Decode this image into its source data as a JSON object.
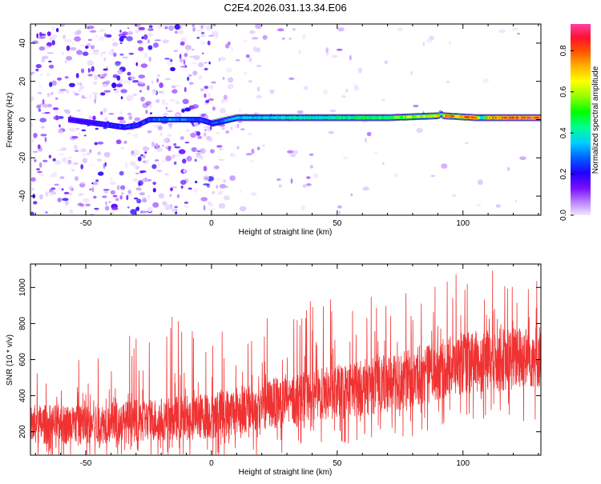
{
  "title": "C2E4.2026.031.13.34.E06",
  "chart_data": [
    {
      "type": "heatmap",
      "title": "C2E4.2026.031.13.34.E06",
      "xlabel": "Height of straight line (km)",
      "ylabel": "Frequency (Hz)",
      "xlim": [
        -72,
        131
      ],
      "ylim": [
        -50,
        50
      ],
      "xticks": [
        -50,
        0,
        50,
        100
      ],
      "xtick_labels": [
        "-50",
        "0",
        "50",
        "100"
      ],
      "yticks": [
        -40,
        -20,
        0,
        20,
        40
      ],
      "ytick_labels": [
        "-40",
        "-20",
        "0",
        "20",
        "40"
      ],
      "grid": false,
      "colorbar": {
        "label": "Normalized spectral amplitude",
        "range": [
          0,
          0.93
        ],
        "ticks": [
          0.0,
          0.2,
          0.4,
          0.6,
          0.8
        ],
        "tick_labels": [
          "0.0",
          "0.2",
          "0.4",
          "0.6",
          "0.8"
        ],
        "colors": [
          "#f0dfff",
          "#9b3bff",
          "#5a00ff",
          "#0000ff",
          "#0080ff",
          "#00e6ff",
          "#00ff80",
          "#00ff00",
          "#7fff00",
          "#ffff00",
          "#ffb000",
          "#ff5000",
          "#ff1010",
          "#ff40a0"
        ]
      },
      "signal_band": {
        "description_x": [
          -57,
          -35,
          -30,
          -25,
          -20,
          -15,
          -10,
          -5,
          0,
          10,
          30,
          50,
          70,
          90,
          91,
          92,
          105,
          107,
          110,
          131
        ],
        "center_frequency": [
          0,
          -4,
          -3,
          0,
          0,
          0,
          0,
          0,
          -2,
          1,
          1,
          1,
          1,
          2,
          3,
          2,
          1,
          1,
          1,
          1
        ],
        "amplitude": [
          0.18,
          0.25,
          0.22,
          0.25,
          0.3,
          0.3,
          0.3,
          0.25,
          0.25,
          0.35,
          0.4,
          0.45,
          0.5,
          0.7,
          0.3,
          0.75,
          0.8,
          0.35,
          0.8,
          0.85
        ]
      }
    },
    {
      "type": "line",
      "xlabel": "Height of straight line (km)",
      "ylabel": "SNR (10 * v/v)",
      "xlim": [
        -72,
        131
      ],
      "ylim": [
        70,
        1130
      ],
      "xticks": [
        -50,
        0,
        50,
        100
      ],
      "xtick_labels": [
        "-50",
        "0",
        "50",
        "100"
      ],
      "yticks": [
        200,
        400,
        600,
        800,
        1000
      ],
      "ytick_labels": [
        "200",
        "400",
        "600",
        "800",
        "1000"
      ],
      "grid": false,
      "series": [
        {
          "name": "SNR",
          "color": "#f03232",
          "x_start": -72,
          "x_end": 131,
          "trend_x": [
            -72,
            -50,
            -20,
            0,
            25,
            50,
            75,
            100,
            131
          ],
          "trend_y": [
            240,
            240,
            270,
            290,
            360,
            420,
            480,
            580,
            620
          ],
          "spread": [
            110,
            110,
            120,
            130,
            140,
            150,
            160,
            170,
            180
          ],
          "peak_max": [
            650,
            650,
            850,
            810,
            880,
            990,
            970,
            1120,
            1080
          ]
        }
      ]
    }
  ]
}
